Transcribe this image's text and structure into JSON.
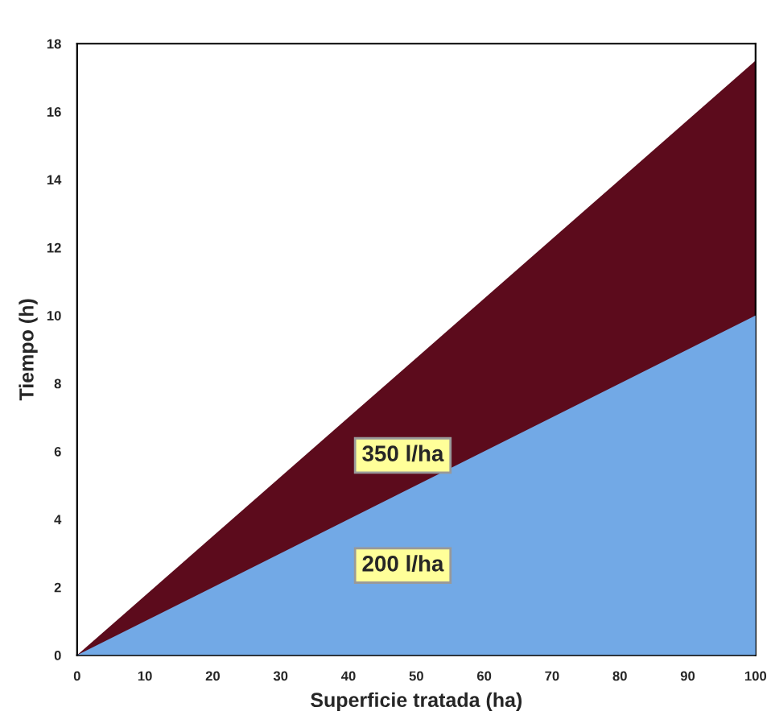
{
  "chart_data": {
    "type": "area",
    "xlabel": "Superficie tratada (ha)",
    "ylabel": "Tiempo (h)",
    "x": [
      0,
      100
    ],
    "series": [
      {
        "name": "350 l/ha",
        "color": "#5c0b1c",
        "values": [
          0,
          17.5
        ]
      },
      {
        "name": "200 l/ha",
        "color": "#72a9e6",
        "values": [
          0,
          10
        ]
      }
    ],
    "xlim": [
      0,
      100
    ],
    "xticks": [
      0,
      10,
      20,
      30,
      40,
      50,
      60,
      70,
      80,
      90,
      100
    ],
    "ylim": [
      0,
      18
    ],
    "yticks": [
      0,
      2,
      4,
      6,
      8,
      10,
      12,
      14,
      16,
      18
    ],
    "grid": false,
    "legend": false
  }
}
